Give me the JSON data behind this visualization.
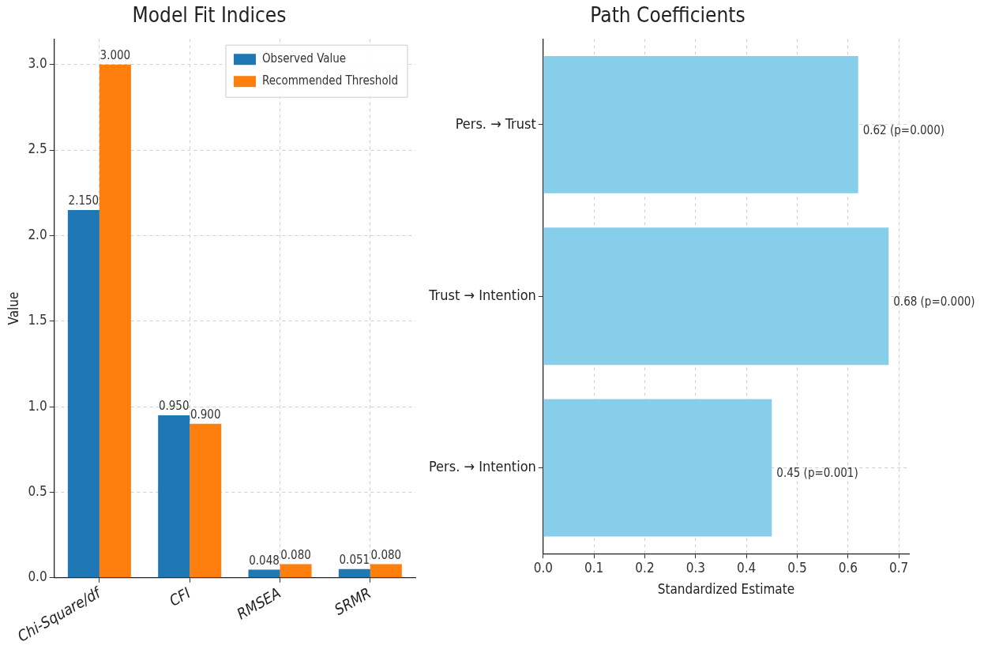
{
  "chart_data": [
    {
      "type": "bar",
      "title": "Model Fit Indices",
      "ylabel": "Value",
      "categories": [
        "Chi-Square/df",
        "CFI",
        "RMSEA",
        "SRMR"
      ],
      "series": [
        {
          "name": "Observed Value",
          "color": "#1f77b4",
          "values": [
            2.15,
            0.95,
            0.048,
            0.051
          ],
          "value_labels": [
            "2.150",
            "0.950",
            "0.048",
            "0.051"
          ]
        },
        {
          "name": "Recommended Threshold",
          "color": "#ff7f0e",
          "values": [
            3.0,
            0.9,
            0.08,
            0.08
          ],
          "value_labels": [
            "3.000",
            "0.900",
            "0.080",
            "0.080"
          ]
        }
      ],
      "ylim": [
        0,
        3.15
      ],
      "yticks": [
        {
          "value": 0,
          "label": "0.0"
        },
        {
          "value": 0.5,
          "label": "0.5"
        },
        {
          "value": 1,
          "label": "1.0"
        },
        {
          "value": 1.5,
          "label": "1.5"
        },
        {
          "value": 2,
          "label": "2.0"
        },
        {
          "value": 2.5,
          "label": "2.5"
        },
        {
          "value": 3,
          "label": "3.0"
        }
      ],
      "grid": true,
      "legend": "top right"
    },
    {
      "type": "bar",
      "orientation": "horizontal",
      "title": "Path Coefficients",
      "xlabel": "Standardized Estimate",
      "categories": [
        "Pers. → Trust",
        "Trust → Intention",
        "Pers. → Intention"
      ],
      "values": [
        0.62,
        0.68,
        0.45
      ],
      "color": "#87ceeb",
      "value_labels": [
        "0.62 (p=0.000)",
        "0.68 (p=0.000)",
        "0.45 (p=0.001)"
      ],
      "xlim": [
        0,
        0.72
      ],
      "xticks": [
        {
          "value": 0,
          "label": "0.0"
        },
        {
          "value": 0.1,
          "label": "0.1"
        },
        {
          "value": 0.2,
          "label": "0.2"
        },
        {
          "value": 0.3,
          "label": "0.3"
        },
        {
          "value": 0.4,
          "label": "0.4"
        },
        {
          "value": 0.5,
          "label": "0.5"
        },
        {
          "value": 0.6,
          "label": "0.6"
        },
        {
          "value": 0.7,
          "label": "0.7"
        }
      ],
      "grid": true
    }
  ]
}
